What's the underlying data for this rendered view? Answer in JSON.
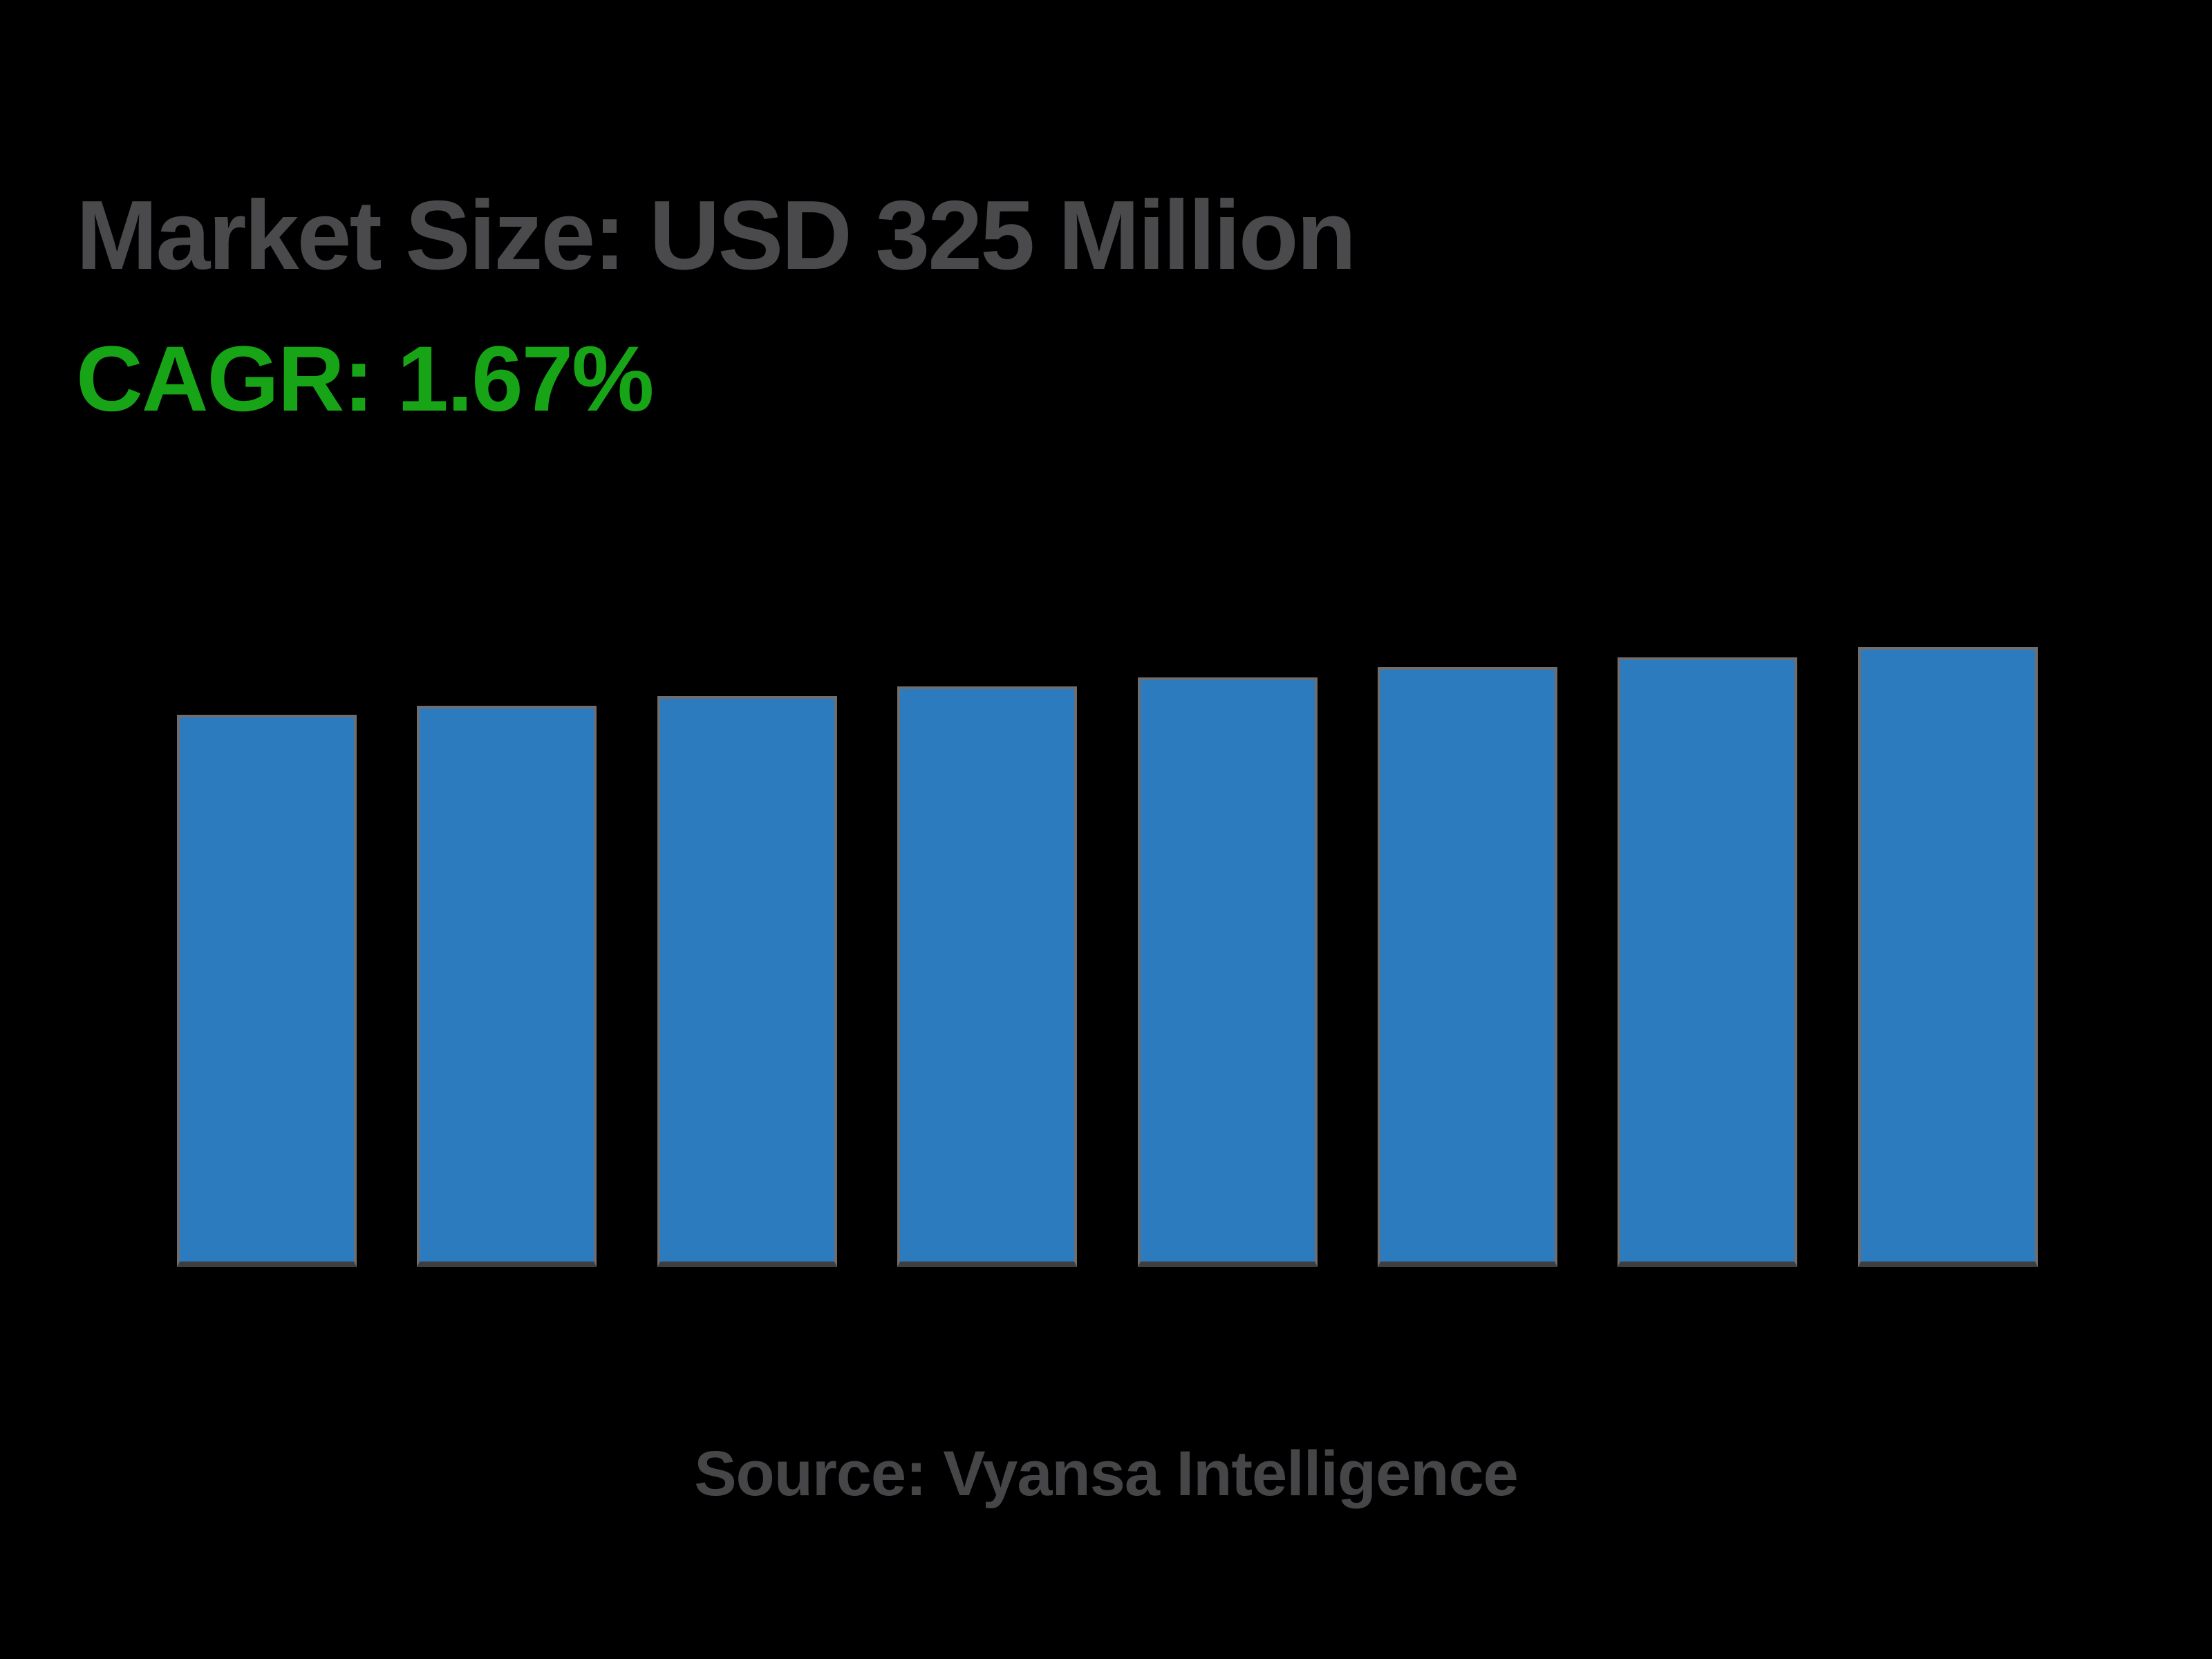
{
  "header": {
    "market_size_label": "Market Size: USD 325 Million",
    "cagr_label": "CAGR: 1.67%"
  },
  "footer": {
    "source_label": "Source: Vyansa Intelligence"
  },
  "colors": {
    "background": "#000000",
    "bar_fill": "#2B7BBE",
    "bar_outline": "#6E6E70",
    "bar_shadow": "#3E3E40",
    "title_text": "#4A4A4C",
    "cagr_text": "#17A517",
    "source_text": "#464648"
  },
  "chart_data": {
    "type": "bar",
    "title": "Market Size: USD 325 Million",
    "subtitle": "CAGR: 1.67%",
    "source": "Source: Vyansa Intelligence",
    "unit": "USD Million",
    "cagr_percent": 1.67,
    "categories": [
      "",
      "",
      "",
      "",
      "",
      "",
      "",
      ""
    ],
    "values": [
      289.4,
      294.3,
      299.2,
      304.2,
      309.2,
      314.4,
      319.7,
      325.0
    ],
    "ylim": [
      0,
      325
    ],
    "grid": false,
    "axes_visible": false,
    "legend": false,
    "bar_color": "#2B7BBE"
  }
}
